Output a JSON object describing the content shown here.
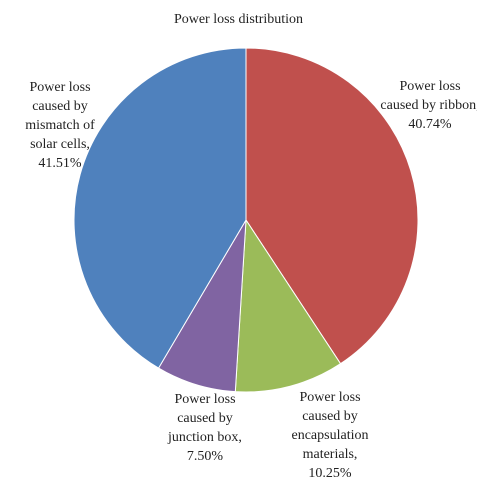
{
  "chart_data": {
    "type": "pie",
    "title": "Power loss distribution",
    "categories": [
      "Power loss caused by ribbon,",
      "Power loss caused by encapsulation materials,",
      "Power loss caused by junction box,",
      "Power loss caused by mismatch of solar cells,"
    ],
    "values": [
      40.74,
      10.25,
      7.5,
      41.51
    ],
    "value_labels": [
      "40.74%",
      "10.25%",
      "7.50%",
      "41.51%"
    ],
    "colors": [
      "#c0504d",
      "#9bbb59",
      "#8064a2",
      "#4f81bd"
    ]
  }
}
